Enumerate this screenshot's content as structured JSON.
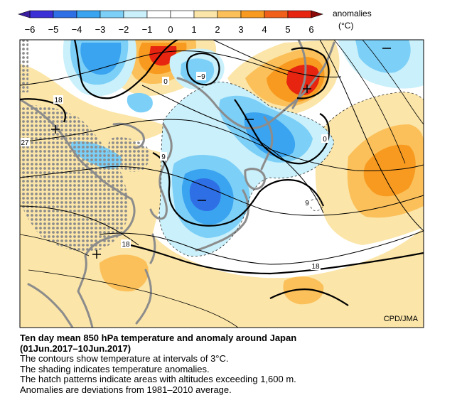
{
  "colorbar": {
    "ticks": [
      "−6",
      "−5",
      "−4",
      "−3",
      "−2",
      "−1",
      "0",
      "1",
      "2",
      "3",
      "4",
      "5",
      "6"
    ],
    "unit_line1": "anomalies",
    "unit_line2": "(°C)",
    "colors": [
      "#3b2fd6",
      "#2f6fe6",
      "#3aa4f0",
      "#7ccff7",
      "#c9f0fb",
      "#ffffff",
      "#ffffff",
      "#fbe5a8",
      "#fbc05a",
      "#f89a1f",
      "#f0601a",
      "#e62410"
    ]
  },
  "map": {
    "contour_labels": [
      "0",
      "−9",
      "18",
      "27",
      "9",
      "0",
      "9",
      "18",
      "18"
    ],
    "credit": "CPD/JMA",
    "colors": {
      "land": "#8c8c8c",
      "contour": "#000000",
      "warm_1": "#fbe5a8",
      "warm_2": "#fbc05a",
      "warm_3": "#f89a1f",
      "warm_4": "#e62410",
      "cold_1": "#c9f0fb",
      "cold_2": "#7ccff7",
      "cold_3": "#3aa4f0",
      "cold_4": "#2f6fe6"
    }
  },
  "caption": {
    "title_line1": "Ten day mean 850 hPa temperature and anomaly around Japan",
    "title_line2": "(01Jun.2017–10Jun.2017)",
    "lines": [
      "The contours show temperature at intervals of 3°C.",
      "The shading indicates temperature anomalies.",
      "The hatch patterns indicate areas with altitudes exceeding 1,600 m.",
      "Anomalies are deviations from 1981–2010 average."
    ]
  }
}
